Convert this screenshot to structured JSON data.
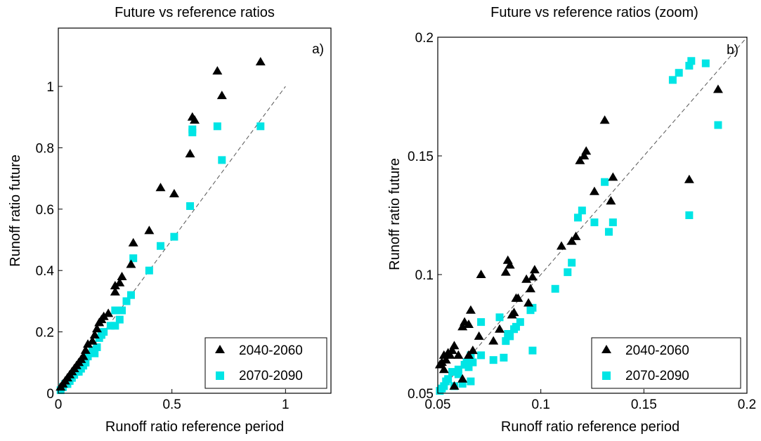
{
  "colors": {
    "series1": "#000000",
    "series2": "#00e5e5",
    "reference_line": "#555555"
  },
  "chart_data": [
    {
      "type": "scatter",
      "title": "Future vs reference ratios",
      "panel_label": "a)",
      "xlabel": "Runoff ratio reference period",
      "ylabel": "Runoff ratio future",
      "xlim": [
        0,
        1.2
      ],
      "ylim": [
        0,
        1.19
      ],
      "xticks": [
        0,
        0.5,
        1
      ],
      "xtick_labels": [
        "0",
        "0.5",
        "1"
      ],
      "yticks": [
        0,
        0.2,
        0.4,
        0.6,
        0.8,
        1
      ],
      "ytick_labels": [
        "0",
        "0.2",
        "0.4",
        "0.6",
        "0.8",
        "1"
      ],
      "grid": false,
      "legend_position": "bottom-right",
      "reference_line": [
        [
          0,
          0
        ],
        [
          1,
          1
        ]
      ],
      "series": [
        {
          "name": "2040-2060",
          "marker": "triangle",
          "x": [
            0.89,
            0.7,
            0.72,
            0.59,
            0.6,
            0.58,
            0.45,
            0.51,
            0.4,
            0.33,
            0.32,
            0.28,
            0.27,
            0.25,
            0.25,
            0.22,
            0.2,
            0.19,
            0.18,
            0.17,
            0.16,
            0.15,
            0.13,
            0.12,
            0.11,
            0.1,
            0.09,
            0.08,
            0.07,
            0.06,
            0.05,
            0.04,
            0.03,
            0.02,
            0.01
          ],
          "y": [
            1.08,
            1.05,
            0.97,
            0.9,
            0.89,
            0.78,
            0.67,
            0.65,
            0.53,
            0.49,
            0.42,
            0.38,
            0.36,
            0.35,
            0.33,
            0.26,
            0.25,
            0.24,
            0.23,
            0.21,
            0.19,
            0.17,
            0.16,
            0.14,
            0.12,
            0.11,
            0.1,
            0.09,
            0.08,
            0.07,
            0.06,
            0.05,
            0.04,
            0.03,
            0.02
          ]
        },
        {
          "name": "2070-2090",
          "marker": "square",
          "x": [
            0.89,
            0.7,
            0.72,
            0.59,
            0.59,
            0.58,
            0.45,
            0.51,
            0.4,
            0.33,
            0.32,
            0.3,
            0.28,
            0.27,
            0.25,
            0.25,
            0.23,
            0.2,
            0.19,
            0.18,
            0.17,
            0.16,
            0.15,
            0.13,
            0.12,
            0.11,
            0.1,
            0.09,
            0.08,
            0.07,
            0.06,
            0.05,
            0.04,
            0.03,
            0.02,
            0.01
          ],
          "y": [
            0.87,
            0.87,
            0.76,
            0.86,
            0.85,
            0.61,
            0.48,
            0.51,
            0.4,
            0.44,
            0.32,
            0.3,
            0.27,
            0.24,
            0.22,
            0.27,
            0.22,
            0.2,
            0.19,
            0.18,
            0.15,
            0.13,
            0.14,
            0.12,
            0.1,
            0.09,
            0.08,
            0.07,
            0.07,
            0.06,
            0.05,
            0.04,
            0.03,
            0.03,
            0.02,
            0.01
          ]
        }
      ]
    },
    {
      "type": "scatter",
      "title": "Future vs reference ratios (zoom)",
      "panel_label": "b)",
      "xlabel": "Runoff ratio reference period",
      "ylabel": "Runoff ratio future",
      "xlim": [
        0.05,
        0.2
      ],
      "ylim": [
        0.05,
        0.2
      ],
      "xticks": [
        0.05,
        0.1,
        0.15,
        0.2
      ],
      "xtick_labels": [
        "0.05",
        "0.1",
        "0.15",
        "0.2"
      ],
      "yticks": [
        0.05,
        0.1,
        0.15,
        0.2
      ],
      "ytick_labels": [
        "0.05",
        "0.1",
        "0.15",
        "0.2"
      ],
      "grid": false,
      "legend_position": "bottom-right",
      "reference_line": [
        [
          0.05,
          0.05
        ],
        [
          0.2,
          0.2
        ]
      ],
      "series": [
        {
          "name": "2040-2060",
          "marker": "triangle",
          "x": [
            0.186,
            0.172,
            0.135,
            0.134,
            0.131,
            0.126,
            0.122,
            0.121,
            0.119,
            0.117,
            0.115,
            0.11,
            0.097,
            0.096,
            0.095,
            0.094,
            0.093,
            0.089,
            0.088,
            0.087,
            0.086,
            0.085,
            0.084,
            0.083,
            0.08,
            0.077,
            0.071,
            0.067,
            0.066,
            0.065,
            0.063,
            0.062,
            0.06,
            0.058,
            0.057,
            0.056,
            0.055,
            0.054,
            0.053,
            0.052,
            0.051,
            0.053,
            0.058,
            0.062,
            0.065,
            0.07
          ],
          "y": [
            0.178,
            0.14,
            0.141,
            0.131,
            0.165,
            0.135,
            0.152,
            0.15,
            0.148,
            0.116,
            0.114,
            0.112,
            0.102,
            0.099,
            0.094,
            0.088,
            0.098,
            0.09,
            0.09,
            0.084,
            0.083,
            0.104,
            0.106,
            0.101,
            0.077,
            0.072,
            0.1,
            0.068,
            0.085,
            0.079,
            0.08,
            0.078,
            0.066,
            0.07,
            0.068,
            0.066,
            0.067,
            0.064,
            0.066,
            0.063,
            0.062,
            0.06,
            0.053,
            0.056,
            0.066,
            0.074
          ]
        },
        {
          "name": "2070-2090",
          "marker": "square",
          "x": [
            0.173,
            0.18,
            0.172,
            0.167,
            0.164,
            0.186,
            0.172,
            0.135,
            0.133,
            0.131,
            0.126,
            0.12,
            0.118,
            0.115,
            0.113,
            0.107,
            0.096,
            0.095,
            0.096,
            0.09,
            0.088,
            0.087,
            0.085,
            0.084,
            0.083,
            0.082,
            0.08,
            0.077,
            0.071,
            0.067,
            0.066,
            0.065,
            0.064,
            0.063,
            0.062,
            0.06,
            0.058,
            0.057,
            0.055,
            0.054,
            0.053,
            0.052,
            0.051,
            0.06,
            0.066,
            0.071
          ],
          "y": [
            0.19,
            0.189,
            0.188,
            0.185,
            0.182,
            0.163,
            0.125,
            0.122,
            0.118,
            0.139,
            0.122,
            0.127,
            0.124,
            0.105,
            0.101,
            0.094,
            0.086,
            0.085,
            0.068,
            0.08,
            0.078,
            0.077,
            0.074,
            0.075,
            0.072,
            0.065,
            0.082,
            0.064,
            0.066,
            0.063,
            0.066,
            0.061,
            0.063,
            0.062,
            0.054,
            0.06,
            0.053,
            0.059,
            0.056,
            0.055,
            0.053,
            0.052,
            0.051,
            0.058,
            0.055,
            0.08
          ]
        }
      ]
    }
  ]
}
